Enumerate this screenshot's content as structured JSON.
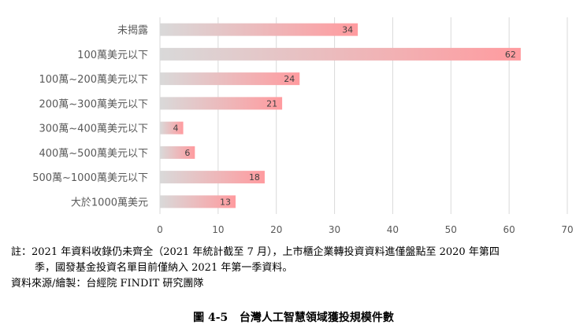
{
  "chart_data": {
    "type": "bar",
    "orientation": "horizontal",
    "categories": [
      "未揭露",
      "100萬美元以下",
      "100萬~200萬美元以下",
      "200萬~300萬美元以下",
      "300萬~400萬美元以下",
      "400萬~500萬美元以下",
      "500萬~1000萬美元以下",
      "大於1000萬美元"
    ],
    "values": [
      34,
      62,
      24,
      21,
      4,
      6,
      18,
      13
    ],
    "xlim": [
      0,
      70
    ],
    "xticks": [
      "0",
      "10",
      "20",
      "30",
      "40",
      "50",
      "60",
      "70"
    ],
    "grid": true,
    "bar_gradient": [
      "#d9d9d9",
      "#ff9b9f"
    ]
  },
  "notes": {
    "line1": "註：2021 年資料收錄仍未齊全（2021 年統計截至 7 月），上市櫃企業轉投資資料進僅盤點至 2020 年第四",
    "line2": "季，國發基金投資名單目前僅納入 2021 年第一季資料。",
    "source": "資料來源/繪製：台經院 FINDIT 研究團隊"
  },
  "caption": {
    "number": "圖 4-5",
    "title": "台灣人工智慧領域獲投規模件數"
  }
}
